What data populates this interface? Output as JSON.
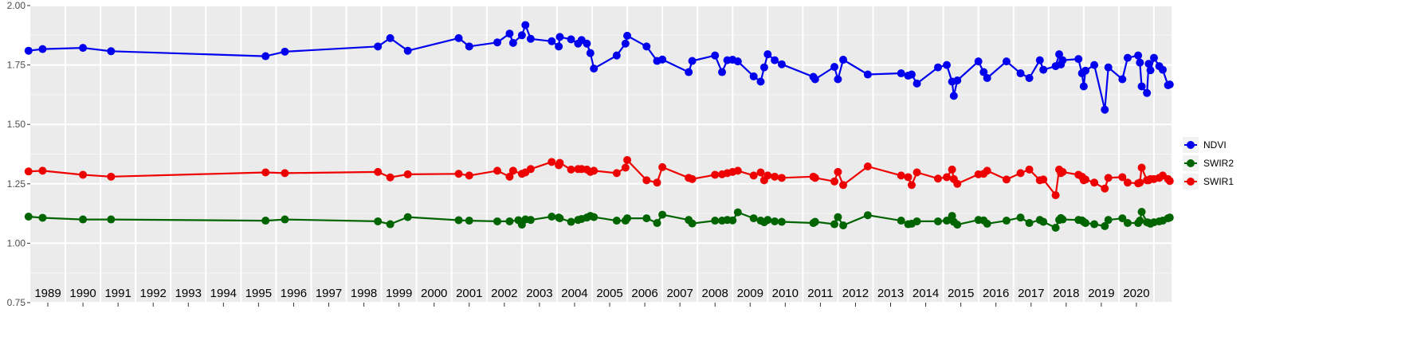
{
  "chart_data": {
    "type": "line",
    "title": "",
    "xlabel": "",
    "ylabel": "",
    "ylim": [
      0.75,
      2.0
    ],
    "yticks": [
      "0.75",
      "1.00",
      "1.25",
      "1.50",
      "1.75",
      "2.00"
    ],
    "ytick_values": [
      0.75,
      1.0,
      1.25,
      1.5,
      1.75,
      2.0
    ],
    "xlim": [
      1988.5,
      2021.0
    ],
    "year_labels": [
      "1989",
      "1990",
      "1991",
      "1992",
      "1993",
      "1994",
      "1995",
      "1996",
      "1997",
      "1998",
      "1999",
      "2000",
      "2001",
      "2002",
      "2003",
      "2004",
      "2005",
      "2006",
      "2007",
      "2008",
      "2009",
      "2010",
      "2011",
      "2012",
      "2013",
      "2014",
      "2015",
      "2016",
      "2017",
      "2018",
      "2019",
      "2020"
    ],
    "year_label_positions": [
      1989.0,
      1990.0,
      1991.0,
      1992.0,
      1993.0,
      1994.0,
      1995.0,
      1996.0,
      1997.0,
      1998.0,
      1999.0,
      2000.0,
      2001.0,
      2002.0,
      2003.0,
      2004.0,
      2005.0,
      2006.0,
      2007.0,
      2008.0,
      2009.0,
      2010.0,
      2011.0,
      2012.0,
      2013.0,
      2014.0,
      2015.0,
      2016.0,
      2017.0,
      2018.0,
      2019.0,
      2020.0
    ],
    "grid": true,
    "legend_position": "right",
    "colors": {
      "NDVI": "#0000ee",
      "SWIR2": "#006400",
      "SWIR1": "#ee0000"
    },
    "series": [
      {
        "name": "NDVI",
        "x": [
          1988.45,
          1988.85,
          1990.0,
          1990.8,
          1995.2,
          1995.75,
          1998.4,
          1998.75,
          1999.25,
          2000.7,
          2001.0,
          2001.8,
          2002.15,
          2002.25,
          2002.5,
          2002.6,
          2002.75,
          2003.35,
          2003.55,
          2003.58,
          2003.9,
          2004.1,
          2004.2,
          2004.35,
          2004.45,
          2004.55,
          2005.2,
          2005.45,
          2005.5,
          2006.05,
          2006.35,
          2006.5,
          2007.25,
          2007.35,
          2008.0,
          2008.2,
          2008.35,
          2008.5,
          2008.65,
          2009.1,
          2009.3,
          2009.4,
          2009.5,
          2009.7,
          2009.9,
          2010.8,
          2010.85,
          2011.4,
          2011.5,
          2011.65,
          2012.35,
          2013.3,
          2013.5,
          2013.6,
          2013.75,
          2014.35,
          2014.6,
          2014.75,
          2014.8,
          2014.9,
          2015.5,
          2015.65,
          2015.75,
          2016.3,
          2016.7,
          2016.95,
          2017.25,
          2017.35,
          2017.7,
          2017.8,
          2017.85,
          2017.9,
          2018.35,
          2018.45,
          2018.5,
          2018.55,
          2018.8,
          2019.1,
          2019.2,
          2019.6,
          2019.75,
          2020.05,
          2020.1,
          2020.15,
          2020.3,
          2020.35,
          2020.4,
          2020.5,
          2020.65,
          2020.75,
          2020.9,
          2020.95
        ],
        "values": [
          1.81,
          1.817,
          1.822,
          1.808,
          1.787,
          1.806,
          1.828,
          1.863,
          1.81,
          1.863,
          1.828,
          1.845,
          1.882,
          1.843,
          1.875,
          1.918,
          1.86,
          1.85,
          1.828,
          1.868,
          1.858,
          1.84,
          1.855,
          1.84,
          1.8,
          1.735,
          1.79,
          1.84,
          1.873,
          1.828,
          1.767,
          1.773,
          1.72,
          1.767,
          1.79,
          1.72,
          1.77,
          1.772,
          1.765,
          1.702,
          1.68,
          1.74,
          1.795,
          1.77,
          1.753,
          1.7,
          1.69,
          1.742,
          1.69,
          1.772,
          1.71,
          1.715,
          1.705,
          1.71,
          1.672,
          1.74,
          1.75,
          1.68,
          1.62,
          1.685,
          1.765,
          1.72,
          1.695,
          1.765,
          1.715,
          1.695,
          1.77,
          1.73,
          1.745,
          1.795,
          1.752,
          1.77,
          1.775,
          1.715,
          1.66,
          1.726,
          1.75,
          1.562,
          1.74,
          1.69,
          1.78,
          1.79,
          1.76,
          1.66,
          1.632,
          1.755,
          1.728,
          1.78,
          1.745,
          1.73,
          1.665,
          1.668
        ]
      },
      {
        "name": "SWIR2",
        "x": [
          1988.45,
          1988.85,
          1990.0,
          1990.8,
          1995.2,
          1995.75,
          1998.4,
          1998.75,
          1999.25,
          2000.7,
          2001.0,
          2001.8,
          2002.15,
          2002.4,
          2002.5,
          2002.6,
          2002.75,
          2003.35,
          2003.55,
          2003.58,
          2003.9,
          2004.1,
          2004.2,
          2004.35,
          2004.45,
          2004.55,
          2005.2,
          2005.45,
          2005.5,
          2006.05,
          2006.35,
          2006.5,
          2007.25,
          2007.35,
          2008.0,
          2008.2,
          2008.35,
          2008.5,
          2008.65,
          2009.1,
          2009.3,
          2009.4,
          2009.5,
          2009.7,
          2009.9,
          2010.8,
          2010.85,
          2011.4,
          2011.5,
          2011.65,
          2012.35,
          2013.3,
          2013.5,
          2013.6,
          2013.75,
          2014.35,
          2014.6,
          2014.75,
          2014.8,
          2014.9,
          2015.5,
          2015.65,
          2015.75,
          2016.3,
          2016.7,
          2016.95,
          2017.25,
          2017.35,
          2017.7,
          2017.8,
          2017.85,
          2017.9,
          2018.35,
          2018.45,
          2018.5,
          2018.55,
          2018.8,
          2019.1,
          2019.2,
          2019.6,
          2019.75,
          2020.05,
          2020.1,
          2020.15,
          2020.3,
          2020.35,
          2020.4,
          2020.5,
          2020.65,
          2020.75,
          2020.9,
          2020.95
        ],
        "values": [
          1.112,
          1.107,
          1.1,
          1.1,
          1.095,
          1.1,
          1.092,
          1.08,
          1.11,
          1.097,
          1.095,
          1.092,
          1.092,
          1.097,
          1.078,
          1.1,
          1.098,
          1.112,
          1.108,
          1.105,
          1.09,
          1.098,
          1.102,
          1.108,
          1.115,
          1.11,
          1.095,
          1.095,
          1.105,
          1.105,
          1.085,
          1.12,
          1.098,
          1.083,
          1.095,
          1.095,
          1.098,
          1.096,
          1.13,
          1.105,
          1.095,
          1.088,
          1.098,
          1.092,
          1.09,
          1.085,
          1.09,
          1.08,
          1.11,
          1.075,
          1.118,
          1.095,
          1.08,
          1.082,
          1.092,
          1.092,
          1.095,
          1.115,
          1.09,
          1.078,
          1.098,
          1.096,
          1.082,
          1.095,
          1.108,
          1.085,
          1.098,
          1.09,
          1.065,
          1.098,
          1.106,
          1.1,
          1.098,
          1.096,
          1.09,
          1.085,
          1.08,
          1.072,
          1.098,
          1.105,
          1.085,
          1.085,
          1.095,
          1.132,
          1.088,
          1.086,
          1.082,
          1.088,
          1.092,
          1.095,
          1.105,
          1.108
        ]
      },
      {
        "name": "SWIR1",
        "x": [
          1988.45,
          1988.85,
          1990.0,
          1990.8,
          1995.2,
          1995.75,
          1998.4,
          1998.75,
          1999.25,
          2000.7,
          2001.0,
          2001.8,
          2002.15,
          2002.25,
          2002.5,
          2002.6,
          2002.75,
          2003.35,
          2003.55,
          2003.58,
          2003.9,
          2004.1,
          2004.2,
          2004.35,
          2004.45,
          2004.55,
          2005.2,
          2005.45,
          2005.5,
          2006.05,
          2006.35,
          2006.5,
          2007.25,
          2007.35,
          2008.0,
          2008.2,
          2008.35,
          2008.5,
          2008.65,
          2009.1,
          2009.3,
          2009.4,
          2009.5,
          2009.7,
          2009.9,
          2010.8,
          2010.85,
          2011.4,
          2011.5,
          2011.65,
          2012.35,
          2013.3,
          2013.5,
          2013.6,
          2013.75,
          2014.35,
          2014.6,
          2014.75,
          2014.8,
          2014.9,
          2015.5,
          2015.65,
          2015.75,
          2016.3,
          2016.7,
          2016.95,
          2017.25,
          2017.35,
          2017.7,
          2017.8,
          2017.85,
          2017.9,
          2018.35,
          2018.45,
          2018.5,
          2018.55,
          2018.8,
          2019.1,
          2019.2,
          2019.6,
          2019.75,
          2020.05,
          2020.1,
          2020.15,
          2020.3,
          2020.35,
          2020.4,
          2020.5,
          2020.65,
          2020.75,
          2020.9,
          2020.95
        ],
        "values": [
          1.302,
          1.305,
          1.288,
          1.28,
          1.298,
          1.295,
          1.3,
          1.277,
          1.29,
          1.292,
          1.285,
          1.305,
          1.28,
          1.305,
          1.292,
          1.298,
          1.312,
          1.342,
          1.328,
          1.338,
          1.31,
          1.312,
          1.312,
          1.31,
          1.3,
          1.305,
          1.295,
          1.318,
          1.35,
          1.265,
          1.255,
          1.32,
          1.275,
          1.27,
          1.288,
          1.29,
          1.295,
          1.3,
          1.305,
          1.285,
          1.298,
          1.265,
          1.285,
          1.28,
          1.275,
          1.28,
          1.275,
          1.26,
          1.3,
          1.245,
          1.323,
          1.285,
          1.278,
          1.245,
          1.298,
          1.272,
          1.278,
          1.31,
          1.27,
          1.25,
          1.29,
          1.292,
          1.305,
          1.268,
          1.295,
          1.31,
          1.265,
          1.268,
          1.202,
          1.31,
          1.295,
          1.3,
          1.288,
          1.28,
          1.265,
          1.268,
          1.255,
          1.23,
          1.275,
          1.278,
          1.255,
          1.252,
          1.255,
          1.318,
          1.265,
          1.265,
          1.27,
          1.27,
          1.275,
          1.285,
          1.27,
          1.262
        ]
      }
    ]
  }
}
